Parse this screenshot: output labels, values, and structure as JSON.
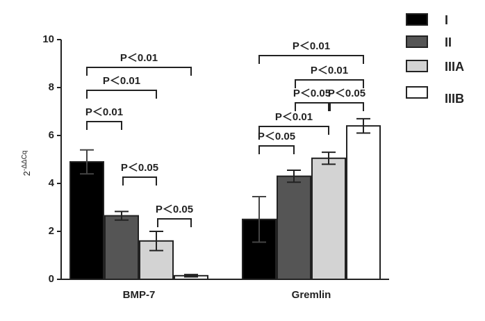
{
  "chart_data": {
    "type": "bar",
    "y_label": {
      "base": "2",
      "exponent": "-ΔΔCq"
    },
    "categories": [
      "BMP-7",
      "Gremlin"
    ],
    "series": [
      {
        "name": "I",
        "color": "#000000",
        "values": [
          4.9,
          2.5
        ],
        "errors": [
          0.5,
          0.95
        ]
      },
      {
        "name": "II",
        "color": "#555555",
        "values": [
          2.65,
          4.3
        ],
        "errors": [
          0.18,
          0.25
        ]
      },
      {
        "name": "IIIA",
        "color": "#d3d3d3",
        "values": [
          1.6,
          5.05
        ],
        "errors": [
          0.4,
          0.25
        ]
      },
      {
        "name": "IIIB",
        "color": "#ffffff",
        "values": [
          0.15,
          6.4
        ],
        "errors": [
          0.05,
          0.3
        ]
      }
    ],
    "ylim": [
      0,
      10
    ],
    "yticks": [
      0,
      2,
      4,
      6,
      8,
      10
    ],
    "annotations": [
      {
        "label": "P＜0.01",
        "group": "BMP-7",
        "from": "I",
        "to": "IIIB"
      },
      {
        "label": "P＜0.01",
        "group": "BMP-7",
        "from": "I",
        "to": "IIIA"
      },
      {
        "label": "P＜0.01",
        "group": "BMP-7",
        "from": "I",
        "to": "II"
      },
      {
        "label": "P＜0.05",
        "group": "BMP-7",
        "from": "II",
        "to": "IIIA"
      },
      {
        "label": "P＜0.05",
        "group": "BMP-7",
        "from": "IIIA",
        "to": "IIIB"
      },
      {
        "label": "P＜0.01",
        "group": "Gremlin",
        "from": "I",
        "to": "IIIB"
      },
      {
        "label": "P＜0.01",
        "group": "Gremlin",
        "from": "II",
        "to": "IIIB"
      },
      {
        "label": "P＜0.05",
        "group": "Gremlin",
        "from": "II",
        "to": "IIIA"
      },
      {
        "label": "P＜0.05",
        "group": "Gremlin",
        "from": "IIIA",
        "to": "IIIB"
      },
      {
        "label": "P＜0.01",
        "group": "Gremlin",
        "from": "I",
        "to": "IIIA"
      },
      {
        "label": "P＜0.05",
        "group": "Gremlin",
        "from": "I",
        "to": "II"
      }
    ]
  }
}
